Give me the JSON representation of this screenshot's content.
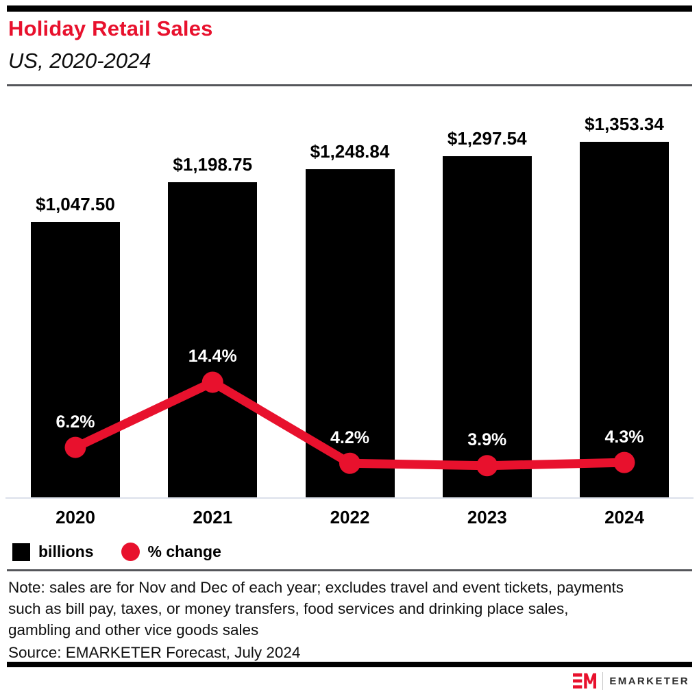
{
  "page": {
    "title": "Holiday Retail Sales",
    "subtitle": "US, 2020-2024"
  },
  "chart_data": {
    "type": "bar",
    "title": "Holiday Retail Sales",
    "subtitle": "US, 2020-2024",
    "categories": [
      "2020",
      "2021",
      "2022",
      "2023",
      "2024"
    ],
    "series": [
      {
        "name": "billions",
        "type": "bar",
        "values": [
          1047.5,
          1198.75,
          1248.84,
          1297.54,
          1353.34
        ],
        "labels": [
          "$1,047.50",
          "$1,198.75",
          "$1,248.84",
          "$1,297.54",
          "$1,353.34"
        ],
        "color": "#000000"
      },
      {
        "name": "% change",
        "type": "line",
        "values": [
          6.2,
          14.4,
          4.2,
          3.9,
          4.3
        ],
        "labels": [
          "6.2%",
          "14.4%",
          "4.2%",
          "3.9%",
          "4.3%"
        ],
        "color": "#e8112d"
      }
    ],
    "xlabel": "",
    "ylabel": "",
    "bar_axis_range": [
      0,
      1400
    ],
    "grid": false,
    "legend_position": "bottom-left",
    "value_labels_shown": true
  },
  "legend": {
    "items": [
      {
        "label": "billions",
        "swatch": "square-icon",
        "color": "#000000"
      },
      {
        "label": "% change",
        "swatch": "circle-icon",
        "color": "#e8112d"
      }
    ]
  },
  "footer": {
    "note_lines": [
      "Note: sales are for Nov and Dec of each year; excludes travel and event tickets, payments",
      "such as bill pay, taxes, or money transfers, food services and drinking place sales,",
      "gambling and other vice goods sales"
    ],
    "source": "Source: EMARKETER Forecast, July 2024"
  },
  "branding": {
    "monogram": "EM",
    "wordmark": "EMARKETER"
  },
  "colors": {
    "accent_red": "#e8112d",
    "bar_black": "#000000",
    "axis_line": "#dbe0ea",
    "rule_gray": "#55565a"
  }
}
